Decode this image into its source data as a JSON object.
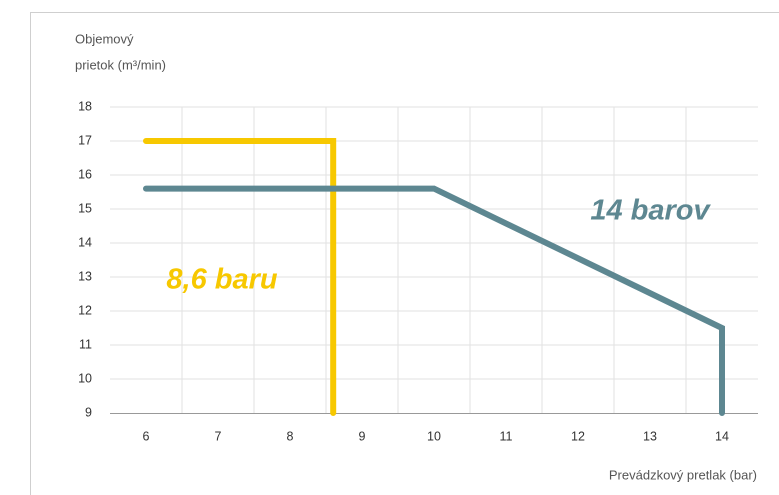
{
  "chart_data": {
    "type": "line",
    "ylabel": [
      "Objemový",
      "prietok (m³/min)"
    ],
    "xlabel": "Prevádzkový pretlak (bar)",
    "xlim": [
      5.5,
      14.5
    ],
    "xticks": [
      6,
      7,
      8,
      9,
      10,
      11,
      12,
      13,
      14
    ],
    "ylim": [
      9,
      18
    ],
    "yticks": [
      9,
      10,
      11,
      12,
      13,
      14,
      15,
      16,
      17,
      18
    ],
    "grid": true,
    "series": [
      {
        "name": "8,6 baru",
        "color": "#f7c800",
        "x": [
          6,
          8.6,
          8.6
        ],
        "values": [
          17,
          17,
          9
        ]
      },
      {
        "name": "14 barov",
        "color": "#5d8791",
        "x": [
          6,
          10,
          14,
          14
        ],
        "values": [
          15.6,
          15.6,
          11.5,
          9
        ]
      }
    ]
  }
}
